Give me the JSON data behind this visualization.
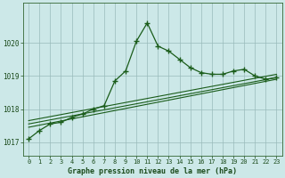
{
  "title": "Graphe pression niveau de la mer (hPa)",
  "bg_color": "#cce8e8",
  "grid_color": "#99bbbb",
  "line_color": "#1a5c1a",
  "xlim": [
    -0.5,
    23.5
  ],
  "ylim": [
    1016.6,
    1021.2
  ],
  "yticks": [
    1017,
    1018,
    1019,
    1020
  ],
  "xticks": [
    0,
    1,
    2,
    3,
    4,
    5,
    6,
    7,
    8,
    9,
    10,
    11,
    12,
    13,
    14,
    15,
    16,
    17,
    18,
    19,
    20,
    21,
    22,
    23
  ],
  "main_series_x": [
    0,
    1,
    2,
    3,
    4,
    5,
    6,
    7,
    8,
    9,
    10,
    11,
    12,
    13,
    14,
    15,
    16,
    17,
    18,
    19,
    20,
    21,
    22,
    23
  ],
  "main_series_y": [
    1017.1,
    1017.35,
    1017.55,
    1017.6,
    1017.75,
    1017.85,
    1018.0,
    1018.1,
    1018.85,
    1019.15,
    1020.05,
    1020.6,
    1019.9,
    1019.75,
    1019.5,
    1019.25,
    1019.1,
    1019.05,
    1019.05,
    1019.15,
    1019.2,
    1019.0,
    1018.9,
    1018.95
  ],
  "trend_lines": [
    {
      "x": [
        0,
        23
      ],
      "y": [
        1017.45,
        1018.9
      ]
    },
    {
      "x": [
        0,
        23
      ],
      "y": [
        1017.55,
        1018.95
      ]
    },
    {
      "x": [
        0,
        23
      ],
      "y": [
        1017.65,
        1019.05
      ]
    }
  ]
}
